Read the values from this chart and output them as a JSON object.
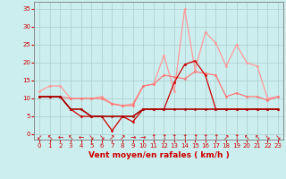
{
  "x": [
    0,
    1,
    2,
    3,
    4,
    5,
    6,
    7,
    8,
    9,
    10,
    11,
    12,
    13,
    14,
    15,
    16,
    17,
    18,
    19,
    20,
    21,
    22,
    23
  ],
  "series": [
    {
      "name": "light_pink_rafales",
      "color": "#ff9999",
      "linewidth": 0.9,
      "markersize": 2.0,
      "y": [
        12.0,
        13.5,
        13.5,
        10.0,
        10.0,
        10.0,
        10.5,
        8.5,
        8.0,
        8.5,
        13.5,
        14.0,
        22.0,
        12.0,
        35.0,
        18.0,
        28.5,
        25.5,
        19.0,
        25.0,
        20.0,
        19.0,
        10.0,
        10.5
      ]
    },
    {
      "name": "medium_pink",
      "color": "#ff7777",
      "linewidth": 0.9,
      "markersize": 2.0,
      "y": [
        10.5,
        10.5,
        10.5,
        10.0,
        10.0,
        10.0,
        10.0,
        8.5,
        8.0,
        8.0,
        13.5,
        14.0,
        16.5,
        16.0,
        15.5,
        17.5,
        17.0,
        16.5,
        10.5,
        11.5,
        10.5,
        10.5,
        9.5,
        10.5
      ]
    },
    {
      "name": "dark_red_spiky",
      "color": "#cc0000",
      "linewidth": 0.9,
      "markersize": 2.0,
      "y": [
        10.5,
        10.5,
        10.5,
        7.0,
        5.0,
        5.0,
        5.0,
        1.0,
        5.0,
        3.5,
        7.0,
        7.0,
        7.0,
        14.5,
        19.5,
        20.5,
        16.5,
        7.0,
        7.0,
        7.0,
        7.0,
        7.0,
        7.0,
        7.0
      ]
    },
    {
      "name": "dark_red_flat",
      "color": "#aa0000",
      "linewidth": 1.2,
      "markersize": 2.0,
      "y": [
        10.5,
        10.5,
        10.5,
        7.0,
        7.0,
        5.0,
        5.0,
        5.0,
        5.0,
        5.0,
        7.0,
        7.0,
        7.0,
        7.0,
        7.0,
        7.0,
        7.0,
        7.0,
        7.0,
        7.0,
        7.0,
        7.0,
        7.0,
        7.0
      ]
    }
  ],
  "arrows": [
    {
      "x": 0,
      "symbol": "↙"
    },
    {
      "x": 1,
      "symbol": "↖"
    },
    {
      "x": 2,
      "symbol": "←"
    },
    {
      "x": 3,
      "symbol": "↖"
    },
    {
      "x": 4,
      "symbol": "←"
    },
    {
      "x": 5,
      "symbol": "↘"
    },
    {
      "x": 6,
      "symbol": "↘"
    },
    {
      "x": 7,
      "symbol": "↗"
    },
    {
      "x": 8,
      "symbol": "↗"
    },
    {
      "x": 9,
      "symbol": "→"
    },
    {
      "x": 10,
      "symbol": "→"
    },
    {
      "x": 11,
      "symbol": "↑"
    },
    {
      "x": 12,
      "symbol": "↑"
    },
    {
      "x": 13,
      "symbol": "↑"
    },
    {
      "x": 14,
      "symbol": "↑"
    },
    {
      "x": 15,
      "symbol": "↑"
    },
    {
      "x": 16,
      "symbol": "↑"
    },
    {
      "x": 17,
      "symbol": "↑"
    },
    {
      "x": 18,
      "symbol": "↗"
    },
    {
      "x": 19,
      "symbol": "↑"
    },
    {
      "x": 20,
      "symbol": "↖"
    },
    {
      "x": 21,
      "symbol": "↖"
    },
    {
      "x": 22,
      "symbol": "↘"
    },
    {
      "x": 23,
      "symbol": "↘"
    }
  ],
  "xlabel": "Vent moyen/en rafales ( km/h )",
  "xlim": [
    -0.5,
    23.5
  ],
  "ylim": [
    -1.5,
    37
  ],
  "yticks": [
    0,
    5,
    10,
    15,
    20,
    25,
    30,
    35
  ],
  "xticks": [
    0,
    1,
    2,
    3,
    4,
    5,
    6,
    7,
    8,
    9,
    10,
    11,
    12,
    13,
    14,
    15,
    16,
    17,
    18,
    19,
    20,
    21,
    22,
    23
  ],
  "bg_color": "#cceeee",
  "grid_color": "#aacccc",
  "text_color": "#cc0000",
  "axis_color": "#888888",
  "arrow_fontsize": 5.5,
  "tick_fontsize": 5.0,
  "xlabel_fontsize": 6.5
}
